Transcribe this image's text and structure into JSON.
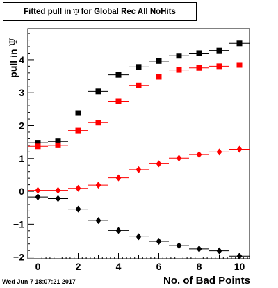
{
  "header": {
    "title_prefix": "Fitted pull in",
    "title_symbol": "Ψ",
    "title_suffix": "for Global Rec All NoHits"
  },
  "footer": {
    "timestamp": "Wed Jun  7 18:07:21 2017"
  },
  "chart_data": {
    "type": "scatter",
    "title": "Fitted pull in Ψ for Global Rec All NoHits",
    "xlabel": "No. of Bad Points",
    "ylabel": "pull in Ψ",
    "ylabel_prefix": "pull in",
    "ylabel_symbol": "Ψ",
    "xlim": [
      -0.5,
      10.5
    ],
    "ylim": [
      -2.05,
      4.95
    ],
    "x_ticks": [
      0,
      2,
      4,
      6,
      8,
      10
    ],
    "y_ticks": [
      -2,
      -1,
      0,
      1,
      2,
      3,
      4
    ],
    "x_tick_labels": [
      "0",
      "2",
      "4",
      "6",
      "8",
      "10"
    ],
    "y_tick_labels": [
      "−2",
      "−1",
      "0",
      "1",
      "2",
      "3",
      "4"
    ],
    "grid": false,
    "x_error_half_width": 0.5,
    "series": [
      {
        "marker": "square",
        "color": "#000000",
        "x": [
          0,
          1,
          2,
          3,
          4,
          5,
          6,
          7,
          8,
          9,
          10
        ],
        "y": [
          1.48,
          1.52,
          2.38,
          3.04,
          3.54,
          3.78,
          3.96,
          4.12,
          4.2,
          4.28,
          4.5
        ]
      },
      {
        "marker": "square",
        "color": "#ff0000",
        "x": [
          0,
          1,
          2,
          3,
          4,
          5,
          6,
          7,
          8,
          9,
          10
        ],
        "y": [
          1.37,
          1.4,
          1.85,
          2.09,
          2.74,
          3.22,
          3.48,
          3.69,
          3.75,
          3.8,
          3.84
        ]
      },
      {
        "marker": "diamond",
        "color": "#ff0000",
        "x": [
          0,
          1,
          2,
          3,
          4,
          5,
          6,
          7,
          8,
          9,
          10
        ],
        "y": [
          0.03,
          0.03,
          0.09,
          0.19,
          0.41,
          0.66,
          0.84,
          1.01,
          1.12,
          1.2,
          1.28
        ]
      },
      {
        "marker": "diamond",
        "color": "#000000",
        "x": [
          0,
          1,
          2,
          3,
          4,
          5,
          6,
          7,
          8,
          9,
          10
        ],
        "y": [
          -0.17,
          -0.22,
          -0.54,
          -0.89,
          -1.19,
          -1.38,
          -1.52,
          -1.65,
          -1.75,
          -1.81,
          -1.97
        ]
      }
    ]
  }
}
